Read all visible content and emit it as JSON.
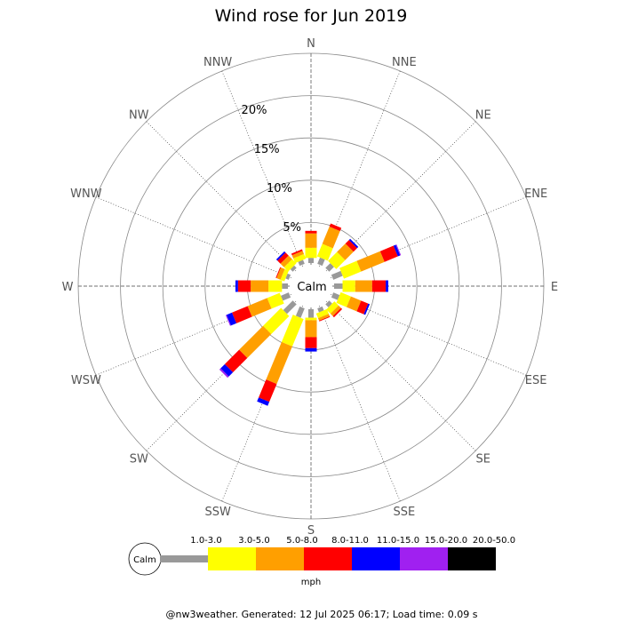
{
  "chart_data": {
    "type": "wind-rose",
    "title": "Wind rose for Jun 2019",
    "directions": [
      "N",
      "NNE",
      "NE",
      "ENE",
      "E",
      "ESE",
      "SE",
      "SSE",
      "S",
      "SSW",
      "SW",
      "WSW",
      "W",
      "WNW",
      "NW",
      "NNW"
    ],
    "rings_pct": [
      5,
      10,
      15,
      20
    ],
    "ring_labels": [
      "5%",
      "10%",
      "15%",
      "20%"
    ],
    "ring_label_suffix": "%",
    "max_pct": 25,
    "center_label": "Calm",
    "speed_unit": "mph",
    "bins": [
      {
        "label": "1.0-3.0",
        "color": "#999999"
      },
      {
        "label": "3.0-5.0",
        "color": "#ffff00"
      },
      {
        "label": "5.0-8.0",
        "color": "#ff9f00"
      },
      {
        "label": "8.0-11.0",
        "color": "#ff0000"
      },
      {
        "label": "11.0-15.0",
        "color": "#0000ff"
      },
      {
        "label": "15.0-20.0",
        "color": "#a020f0"
      },
      {
        "label": "20.0-50.0",
        "color": "#000000"
      }
    ],
    "series": [
      {
        "direction": "N",
        "values": [
          0.6,
          1.2,
          1.7,
          0.3,
          0.0,
          0.0,
          0.0
        ]
      },
      {
        "direction": "NNE",
        "values": [
          0.8,
          1.6,
          2.2,
          0.4,
          0.0,
          0.0,
          0.0
        ]
      },
      {
        "direction": "NE",
        "values": [
          0.8,
          1.5,
          1.4,
          0.6,
          0.2,
          0.0,
          0.0
        ]
      },
      {
        "direction": "ENE",
        "values": [
          1.2,
          2.2,
          3.0,
          1.7,
          0.3,
          0.1,
          0.0
        ]
      },
      {
        "direction": "E",
        "values": [
          1.0,
          1.5,
          2.0,
          1.6,
          0.3,
          0.0,
          0.0
        ]
      },
      {
        "direction": "ESE",
        "values": [
          0.8,
          1.3,
          1.3,
          0.9,
          0.2,
          0.0,
          0.0
        ]
      },
      {
        "direction": "SE",
        "values": [
          0.5,
          0.7,
          0.4,
          0.2,
          0.0,
          0.0,
          0.0
        ]
      },
      {
        "direction": "SSE",
        "values": [
          0.5,
          0.6,
          0.3,
          0.1,
          0.0,
          0.0,
          0.0
        ]
      },
      {
        "direction": "S",
        "values": [
          1.0,
          0.3,
          2.0,
          1.3,
          0.4,
          0.0,
          0.0
        ]
      },
      {
        "direction": "SSW",
        "values": [
          1.2,
          3.5,
          4.8,
          2.3,
          0.5,
          0.0,
          0.0
        ]
      },
      {
        "direction": "SW",
        "values": [
          1.6,
          3.0,
          4.0,
          2.4,
          0.7,
          0.2,
          0.0
        ]
      },
      {
        "direction": "WSW",
        "values": [
          1.0,
          1.6,
          2.5,
          2.0,
          0.7,
          0.1,
          0.0
        ]
      },
      {
        "direction": "W",
        "values": [
          0.7,
          1.6,
          2.1,
          1.5,
          0.3,
          0.0,
          0.0
        ]
      },
      {
        "direction": "WNW",
        "values": [
          0.4,
          0.5,
          0.5,
          0.1,
          0.0,
          0.0,
          0.0
        ]
      },
      {
        "direction": "NW",
        "values": [
          0.4,
          0.7,
          0.6,
          0.5,
          0.2,
          0.0,
          0.0
        ]
      },
      {
        "direction": "NNW",
        "values": [
          0.5,
          0.6,
          0.4,
          0.2,
          0.0,
          0.0,
          0.0
        ]
      }
    ]
  },
  "footer": "@nw3weather. Generated: 12 Jul 2025 06:17; Load time: 0.09 s"
}
